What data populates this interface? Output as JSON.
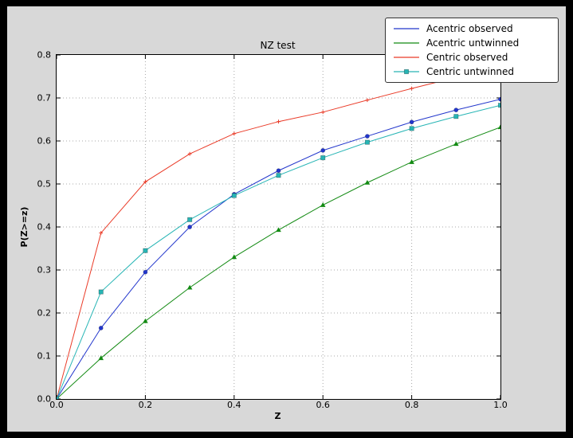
{
  "chart_data": {
    "type": "line",
    "title": "NZ test",
    "xlabel": "Z",
    "ylabel": "P(Z>=z)",
    "xlim": [
      0.0,
      1.0
    ],
    "ylim": [
      0.0,
      0.8
    ],
    "xticks": [
      0.0,
      0.2,
      0.4,
      0.6,
      0.8,
      1.0
    ],
    "xtick_labels": [
      "0.0",
      "0.2",
      "0.4",
      "0.6",
      "0.8",
      "1.0"
    ],
    "yticks": [
      0.0,
      0.1,
      0.2,
      0.3,
      0.4,
      0.5,
      0.6,
      0.7,
      0.8
    ],
    "ytick_labels": [
      "0.0",
      "0.1",
      "0.2",
      "0.3",
      "0.4",
      "0.5",
      "0.6",
      "0.7",
      "0.8"
    ],
    "grid": true,
    "grid_style": "dotted",
    "grid_color": "#a8a8a8",
    "legend_position": "upper-right",
    "x": [
      0.0,
      0.1,
      0.2,
      0.3,
      0.4,
      0.5,
      0.6,
      0.7,
      0.8,
      0.9,
      1.0
    ],
    "series": [
      {
        "name": "Acentric observed",
        "color": "#2236cc",
        "marker": "circle",
        "legend_marker": false,
        "values": [
          0.0,
          0.165,
          0.295,
          0.4,
          0.476,
          0.531,
          0.578,
          0.611,
          0.644,
          0.672,
          0.697
        ]
      },
      {
        "name": "Acentric untwinned",
        "color": "#128a12",
        "marker": "triangle",
        "legend_marker": false,
        "values": [
          0.0,
          0.095,
          0.181,
          0.259,
          0.33,
          0.393,
          0.451,
          0.503,
          0.551,
          0.593,
          0.632
        ]
      },
      {
        "name": "Centric observed",
        "color": "#ea3b28",
        "marker": "plus",
        "legend_marker": false,
        "values": [
          0.0,
          0.386,
          0.505,
          0.57,
          0.617,
          0.645,
          0.667,
          0.695,
          0.722,
          0.748,
          0.775
        ]
      },
      {
        "name": "Centric untwinned",
        "color": "#27b5b5",
        "marker": "square",
        "legend_marker": true,
        "values": [
          0.0,
          0.249,
          0.345,
          0.417,
          0.473,
          0.52,
          0.561,
          0.597,
          0.629,
          0.657,
          0.683
        ]
      }
    ]
  }
}
